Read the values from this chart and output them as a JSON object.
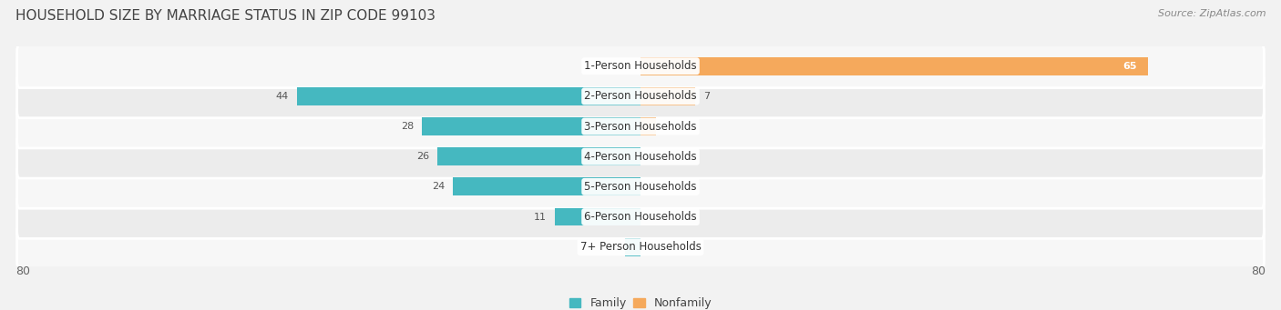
{
  "title": "HOUSEHOLD SIZE BY MARRIAGE STATUS IN ZIP CODE 99103",
  "source": "Source: ZipAtlas.com",
  "categories": [
    "7+ Person Households",
    "6-Person Households",
    "5-Person Households",
    "4-Person Households",
    "3-Person Households",
    "2-Person Households",
    "1-Person Households"
  ],
  "family_values": [
    2,
    11,
    24,
    26,
    28,
    44,
    0
  ],
  "nonfamily_values": [
    0,
    0,
    0,
    0,
    2,
    7,
    65
  ],
  "family_color": "#45B8C0",
  "nonfamily_color": "#F5A95C",
  "xlim": 80,
  "bg_color": "#f2f2f2",
  "row_bg_light": "#f7f7f7",
  "row_bg_dark": "#ececec",
  "title_fontsize": 11,
  "source_fontsize": 8,
  "label_fontsize": 8.5,
  "value_fontsize": 8,
  "legend_fontsize": 9,
  "axis_label_fontsize": 9
}
